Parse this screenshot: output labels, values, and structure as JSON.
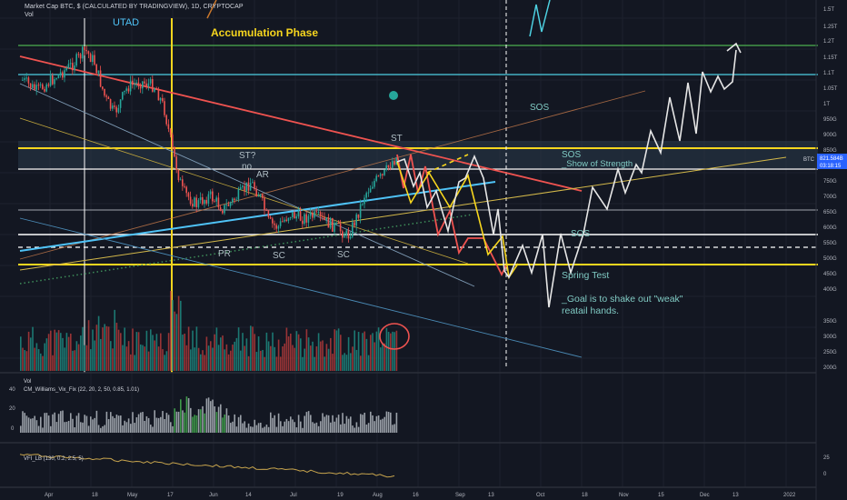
{
  "header": {
    "symbol_line": "Market Cap BTC, $ (CALCULATED BY TRADINGVIEW), 1D, CRYPTOCAP",
    "volume_label": "Vol"
  },
  "price_axis": {
    "labels": [
      "1.5T",
      "1.25T",
      "1.2T",
      "1.15T",
      "1.1T",
      "1.05T",
      "1T",
      "950G",
      "900G",
      "850G",
      "800G",
      "750G",
      "700G",
      "650G",
      "600G",
      "550G",
      "500G",
      "450G",
      "400G",
      "350G",
      "300G",
      "250G",
      "200G",
      "150G"
    ]
  },
  "price_tag": {
    "value": "821.584B",
    "countdown": "03:18:15",
    "ticker": "BTC"
  },
  "time_axis": {
    "labels": [
      "Apr",
      "18",
      "May",
      "17",
      "Jun",
      "14",
      "Jul",
      "19",
      "Aug",
      "16",
      "Sep",
      "13",
      "Oct",
      "18",
      "Nov",
      "15",
      "Dec",
      "13",
      "2022"
    ]
  },
  "annotations": {
    "utad": "UTAD",
    "accumulation": "Accumulation Phase",
    "sos_top": "SOS",
    "st_top": "ST",
    "st_q": "ST?",
    "no": "no",
    "ar": "AR",
    "sos_mid": "SOS",
    "show_strength": "_Show of Strength",
    "sos_low": "SOS",
    "pr": "PR",
    "sc1": "SC",
    "sc2": "SC",
    "spring": "Spring Test",
    "goal_line1": "_Goal is to shake out \"weak\"",
    "goal_line2": "reatail hands."
  },
  "panes": {
    "vol_label": "Vol",
    "williams_label": "CM_Williams_Vix_Fix (22, 20, 2, 50, 0.85, 1.01)",
    "williams_ticks": [
      "40",
      "20",
      "0"
    ],
    "vfi_label": "VFI_LB (130, 0.2, 2.5, 5)",
    "vfi_ticks": [
      "25",
      "0"
    ]
  },
  "colors": {
    "background": "#131722",
    "bull": "#26a69a",
    "bear": "#ef5350",
    "yellow": "#f7d61e",
    "white": "#ffffff",
    "cyan": "#4dd0e1",
    "green_line": "#4caf50",
    "red_line": "#ef5350",
    "orange_path": "#d97b2b"
  },
  "chart_data": {
    "type": "candlestick",
    "title": "Market Cap BTC, $ (CALCULATED BY TRADINGVIEW), 1D, CRYPTOCAP",
    "x_range": [
      "Apr 2021",
      "Jan 2022"
    ],
    "y_unit": "USD market cap",
    "ylim": [
      "150G",
      "1.5T"
    ],
    "key_levels": [
      {
        "value": "1.2T",
        "color": "green"
      },
      {
        "value": "1.1T",
        "color": "cyan"
      },
      {
        "value": "850G",
        "color": "yellow"
      },
      {
        "value": "800G",
        "color": "white"
      },
      {
        "value": "590G",
        "color": "white"
      },
      {
        "value": "480G",
        "color": "yellow"
      }
    ],
    "current_value": "821.584B"
  }
}
